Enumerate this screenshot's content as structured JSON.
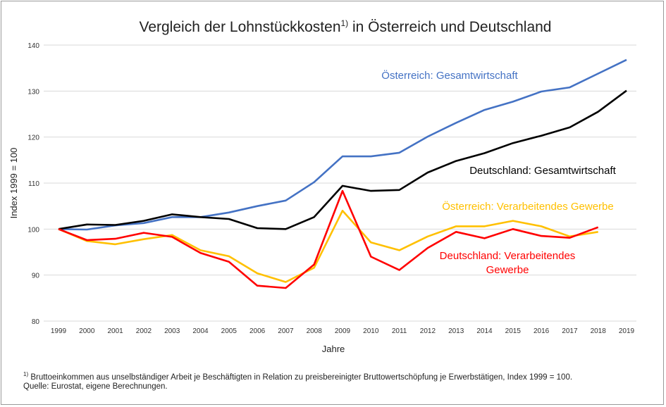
{
  "chart_data": {
    "type": "line",
    "title": "Vergleich der Lohnstückkosten",
    "title_footnote": "1)",
    "title_suffix": " in Österreich und Deutschland",
    "xlabel": "Jahre",
    "ylabel": "Index 1999 = 100",
    "ylim": [
      80,
      140
    ],
    "yticks": [
      80,
      90,
      100,
      110,
      120,
      130,
      140
    ],
    "grid": "horizontal",
    "x": [
      "1999",
      "2000",
      "2001",
      "2002",
      "2003",
      "2004",
      "2005",
      "2006",
      "2007",
      "2008",
      "2009",
      "2010",
      "2011",
      "2012",
      "2013",
      "2014",
      "2015",
      "2016",
      "2017",
      "2018",
      "2019"
    ],
    "series": [
      {
        "name": "Österreich: Gesamtwirtschaft",
        "color": "#4472c4",
        "values": [
          100,
          99.9,
          100.8,
          101.3,
          102.6,
          102.6,
          103.6,
          105.0,
          106.2,
          110.2,
          115.8,
          115.8,
          116.6,
          120.1,
          123.1,
          125.9,
          127.7,
          129.9,
          130.8,
          133.8,
          136.8
        ]
      },
      {
        "name": "Deutschland: Gesamtwirtschaft",
        "color": "#000000",
        "values": [
          100,
          101.0,
          100.9,
          101.8,
          103.2,
          102.6,
          102.2,
          100.2,
          100.0,
          102.6,
          109.4,
          108.3,
          108.5,
          112.3,
          114.8,
          116.5,
          118.7,
          120.3,
          122.1,
          125.5,
          130.1
        ]
      },
      {
        "name": "Österreich: Verarbeitendes Gewerbe",
        "color": "#ffc000",
        "values": [
          100,
          97.4,
          96.7,
          97.8,
          98.7,
          95.4,
          94.1,
          90.4,
          88.5,
          91.6,
          104.0,
          97.1,
          95.4,
          98.4,
          100.6,
          100.6,
          101.8,
          100.6,
          98.4,
          99.4,
          null
        ]
      },
      {
        "name": "Deutschland: Verarbeitendes Gewerbe",
        "color": "#ff0000",
        "values": [
          100,
          97.6,
          97.9,
          99.2,
          98.3,
          94.8,
          92.9,
          87.7,
          87.2,
          92.3,
          108.3,
          94.0,
          91.1,
          95.9,
          99.4,
          98.0,
          100.0,
          98.5,
          98.1,
          100.4,
          null
        ]
      }
    ],
    "labels": {
      "at_total": "Österreich: Gesamtwirtschaft",
      "de_total": "Deutschland: Gesamtwirtschaft",
      "at_manu": "Österreich: Verarbeitendes Gewerbe",
      "de_manu_1": "Deutschland: Verarbeitendes",
      "de_manu_2": "Gewerbe"
    }
  },
  "footnote": {
    "marker": "1)",
    "text": " Bruttoeinkommen aus unselbständiger Arbeit je Beschäftigten in Relation zu preisbereinigter Bruttowertschöpfung je Erwerbstätigen, Index 1999 = 100.",
    "source": "Quelle: Eurostat, eigene Berechnungen."
  }
}
